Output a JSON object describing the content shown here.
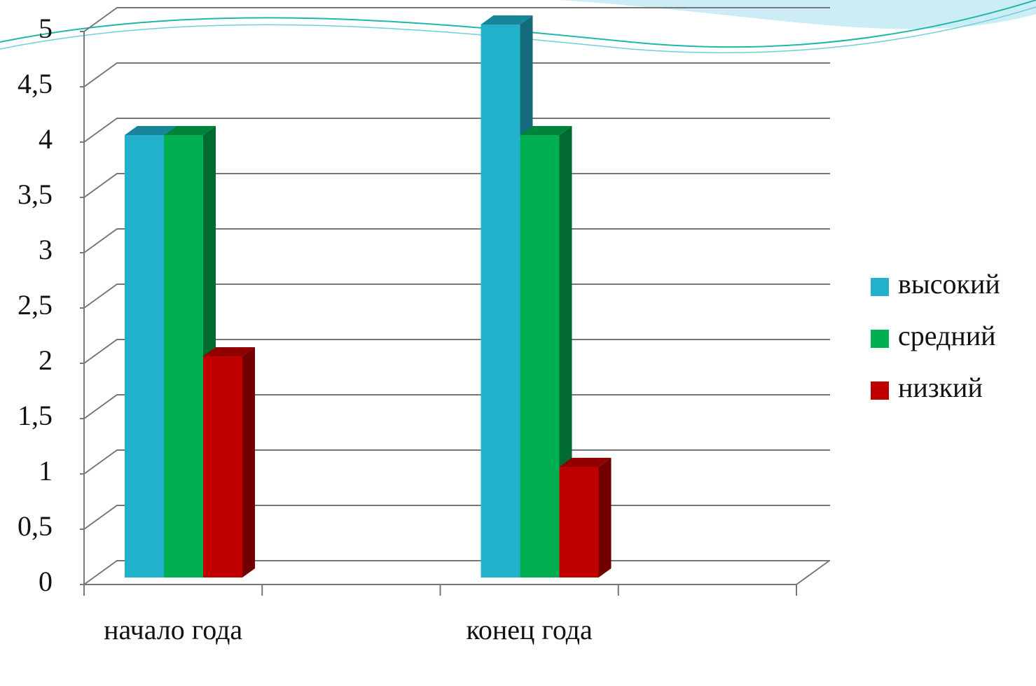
{
  "chart_data": {
    "type": "bar3d",
    "categories": [
      "начало года",
      null,
      "конец года",
      null
    ],
    "series": [
      {
        "name": "высокий",
        "color": "#21b1cb",
        "values": [
          4,
          null,
          5,
          null
        ]
      },
      {
        "name": "средний",
        "color": "#00b050",
        "values": [
          4,
          null,
          4,
          null
        ]
      },
      {
        "name": "низкий",
        "color": "#c00000",
        "values": [
          2,
          null,
          1,
          null
        ]
      }
    ],
    "ylim": [
      0,
      5
    ],
    "yticks": [
      0,
      {
        "value": 0.5,
        "label": "0,5"
      },
      1,
      {
        "value": 1.5,
        "label": "1,5"
      },
      2,
      {
        "value": 2.5,
        "label": "2,5"
      },
      3,
      {
        "value": 3.5,
        "label": "3,5"
      },
      4,
      {
        "value": 4.5,
        "label": "4,5"
      },
      5
    ],
    "grid": true,
    "legend": "right"
  }
}
